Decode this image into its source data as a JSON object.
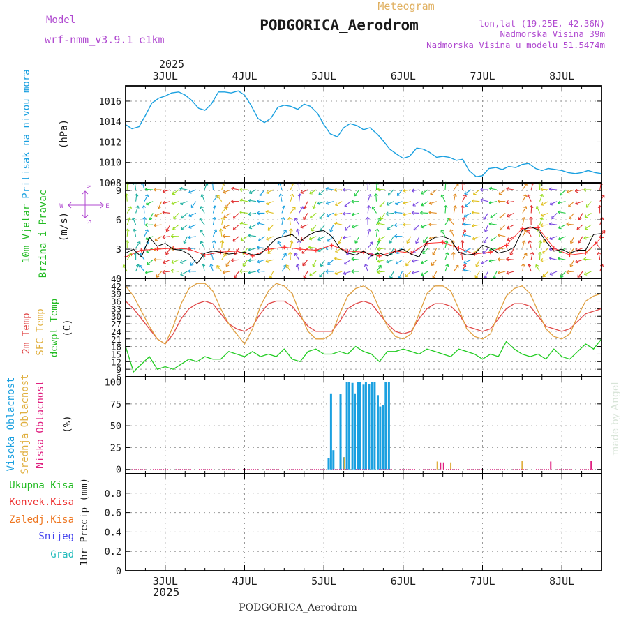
{
  "header": {
    "model_label": "Model",
    "model_name": "wrf-nmm_v3.9.1 e1km",
    "subtitle": "Meteogram",
    "station": "PODGORICA_Aerodrom",
    "coords": "lon,lat (19.25E, 42.36N)",
    "elevation": "Nadmorska Visina 39m",
    "model_elevation": "Nadmorska Visina u modelu 51.5474m"
  },
  "footer": {
    "station": "PODGORICA_Aerodrom",
    "watermark": "made by Angel"
  },
  "colors": {
    "pressure": "#1aa0e0",
    "wind_speed": "#000000",
    "wind_gust": "#ff3030",
    "temp2m": "#e04848",
    "sfc_temp": "#e0a040",
    "dewpoint": "#22cc22",
    "cloud_high": "#1aa0e0",
    "cloud_mid": "#e0b040",
    "cloud_low": "#e02080",
    "precip_total": "#22bb22",
    "precip_conv": "#ee3333",
    "precip_freez": "#ee7722",
    "precip_snow": "#4444ee",
    "precip_grad": "#22bbbb",
    "purple_label": "#b04ad0",
    "orange_label": "#e0b060"
  },
  "chart_data": [
    {
      "type": "line",
      "id": "pressure",
      "ylabel": "Pritisak na nivou mora",
      "unit": "(hPa)",
      "ylim": [
        1008,
        1017.5
      ],
      "yticks": [
        "1008",
        "1010",
        "1012",
        "1014",
        "1016"
      ],
      "x_days": [
        "3JUL",
        "4JUL",
        "5JUL",
        "6JUL",
        "7JUL",
        "8JUL"
      ],
      "year": "2025",
      "x_range_days": [
        2.5,
        8.5
      ],
      "series": [
        {
          "x": [
            2.5,
            2.58,
            2.67,
            2.75,
            2.83,
            2.92,
            3.0,
            3.08,
            3.17,
            3.25,
            3.33,
            3.42,
            3.5,
            3.58,
            3.67,
            3.75,
            3.83,
            3.92,
            4.0,
            4.08,
            4.17,
            4.25,
            4.33,
            4.42,
            4.5,
            4.58,
            4.67,
            4.75,
            4.83,
            4.92,
            5.0,
            5.08,
            5.17,
            5.25,
            5.33,
            5.42,
            5.5,
            5.58,
            5.67,
            5.75,
            5.83,
            5.92,
            6.0,
            6.08,
            6.17,
            6.25,
            6.33,
            6.42,
            6.5,
            6.58,
            6.67,
            6.75,
            6.83,
            6.92,
            7.0,
            7.08,
            7.17,
            7.25,
            7.33,
            7.42,
            7.5,
            7.58,
            7.67,
            7.75,
            7.83,
            7.92,
            8.0,
            8.08,
            8.17,
            8.25,
            8.33,
            8.42,
            8.5
          ],
          "values": [
            1013.7,
            1013.3,
            1013.5,
            1014.6,
            1015.8,
            1016.3,
            1016.5,
            1016.8,
            1016.9,
            1016.6,
            1016.1,
            1015.3,
            1015.1,
            1015.7,
            1016.9,
            1016.9,
            1016.8,
            1017.0,
            1016.6,
            1015.6,
            1014.3,
            1013.9,
            1014.3,
            1015.4,
            1015.6,
            1015.5,
            1015.2,
            1015.7,
            1015.5,
            1014.8,
            1013.7,
            1012.8,
            1012.5,
            1013.4,
            1013.8,
            1013.6,
            1013.2,
            1013.4,
            1012.8,
            1012.1,
            1011.3,
            1010.8,
            1010.4,
            1010.6,
            1011.4,
            1011.3,
            1011.0,
            1010.5,
            1010.6,
            1010.5,
            1010.2,
            1010.3,
            1009.2,
            1008.6,
            1008.7,
            1009.4,
            1009.5,
            1009.3,
            1009.6,
            1009.5,
            1009.8,
            1009.9,
            1009.4,
            1009.2,
            1009.4,
            1009.3,
            1009.2,
            1009.0,
            1008.9,
            1009.0,
            1009.2,
            1009.0,
            1008.9
          ]
        }
      ]
    },
    {
      "type": "line",
      "id": "wind",
      "ylabel": "10m Vjetar",
      "ylabel2": "Brzina i Pravac",
      "unit": "(m/s)",
      "ylim": [
        0,
        9.8
      ],
      "yticks": [
        "0",
        "3",
        "6",
        "9"
      ],
      "compass": {
        "n": "N",
        "s": "S",
        "e": "E",
        "w": "W"
      },
      "x_range_days": [
        2.5,
        8.5
      ],
      "series": [
        {
          "name": "speed",
          "x": [
            2.5,
            2.6,
            2.7,
            2.8,
            2.9,
            3.0,
            3.1,
            3.2,
            3.3,
            3.4,
            3.5,
            3.6,
            3.7,
            3.8,
            3.9,
            4.0,
            4.1,
            4.2,
            4.3,
            4.4,
            4.5,
            4.6,
            4.7,
            4.8,
            4.9,
            5.0,
            5.1,
            5.2,
            5.3,
            5.4,
            5.5,
            5.6,
            5.7,
            5.8,
            5.9,
            6.0,
            6.1,
            6.2,
            6.3,
            6.4,
            6.5,
            6.6,
            6.7,
            6.8,
            6.9,
            7.0,
            7.1,
            7.2,
            7.3,
            7.4,
            7.5,
            7.6,
            7.7,
            7.8,
            7.9,
            8.0,
            8.1,
            8.2,
            8.3,
            8.4,
            8.5
          ],
          "values": [
            2.6,
            3.0,
            2.2,
            4.2,
            3.3,
            3.6,
            3.0,
            2.9,
            2.5,
            1.5,
            2.6,
            2.8,
            2.7,
            2.5,
            2.6,
            2.7,
            2.4,
            2.5,
            3.3,
            4.1,
            4.3,
            4.5,
            3.8,
            4.4,
            4.8,
            4.9,
            4.3,
            3.1,
            2.6,
            2.4,
            2.8,
            2.3,
            2.6,
            2.3,
            2.8,
            3.0,
            2.5,
            2.2,
            3.7,
            4.2,
            4.3,
            4.0,
            2.7,
            2.4,
            2.5,
            3.4,
            3.1,
            2.6,
            2.8,
            3.2,
            4.9,
            5.3,
            5.0,
            3.8,
            2.8,
            3.0,
            2.6,
            2.9,
            2.9,
            4.5,
            4.6
          ]
        },
        {
          "name": "gust",
          "x": [
            2.5,
            2.7,
            2.9,
            3.1,
            3.3,
            3.5,
            3.7,
            3.9,
            4.1,
            4.3,
            4.5,
            4.7,
            4.9,
            5.1,
            5.3,
            5.5,
            5.7,
            5.9,
            6.1,
            6.3,
            6.5,
            6.7,
            6.9,
            7.1,
            7.3,
            7.5,
            7.7,
            7.9,
            8.1,
            8.3,
            8.5
          ],
          "values": [
            2.2,
            2.9,
            3.0,
            3.1,
            3.0,
            2.4,
            2.7,
            2.8,
            2.3,
            3.0,
            3.2,
            3.0,
            2.9,
            3.4,
            2.8,
            2.7,
            2.3,
            2.8,
            2.6,
            3.6,
            3.7,
            3.1,
            2.5,
            2.7,
            3.4,
            5.1,
            5.2,
            3.1,
            2.4,
            2.6,
            4.2
          ]
        }
      ]
    },
    {
      "type": "line",
      "id": "temperature",
      "ylabel": "2m Temp",
      "ylabel2": "SFC Temp",
      "ylabel3": "dewpt Temp",
      "unit": "(C)",
      "ylim": [
        6,
        45
      ],
      "yticks": [
        "6",
        "9",
        "12",
        "15",
        "18",
        "21",
        "24",
        "27",
        "30",
        "33",
        "36",
        "39",
        "42",
        "45"
      ],
      "x_range_days": [
        2.5,
        8.5
      ],
      "series": [
        {
          "name": "2m Temp",
          "x": [
            2.5,
            2.6,
            2.7,
            2.8,
            2.9,
            3.0,
            3.1,
            3.2,
            3.3,
            3.4,
            3.5,
            3.6,
            3.7,
            3.8,
            3.9,
            4.0,
            4.1,
            4.2,
            4.3,
            4.4,
            4.5,
            4.6,
            4.7,
            4.8,
            4.9,
            5.0,
            5.1,
            5.2,
            5.3,
            5.4,
            5.5,
            5.6,
            5.7,
            5.8,
            5.9,
            6.0,
            6.1,
            6.2,
            6.3,
            6.4,
            6.5,
            6.6,
            6.7,
            6.8,
            6.9,
            7.0,
            7.1,
            7.2,
            7.3,
            7.4,
            7.5,
            7.6,
            7.7,
            7.8,
            7.9,
            8.0,
            8.1,
            8.2,
            8.3,
            8.4,
            8.5
          ],
          "values": [
            36,
            33,
            29,
            25,
            21,
            19,
            23,
            29,
            33,
            35,
            36,
            35,
            31,
            27,
            25,
            24,
            26,
            31,
            35,
            36,
            36,
            34,
            30,
            26,
            24,
            24,
            24,
            28,
            33,
            35,
            36,
            35,
            31,
            27,
            24,
            23,
            24,
            29,
            33,
            35,
            35,
            34,
            31,
            26,
            25,
            24,
            25,
            29,
            33,
            35,
            35,
            34,
            30,
            26,
            25,
            24,
            25,
            28,
            31,
            32,
            33
          ]
        },
        {
          "name": "SFC Temp",
          "x": [
            2.5,
            2.6,
            2.7,
            2.8,
            2.9,
            3.0,
            3.1,
            3.2,
            3.3,
            3.4,
            3.5,
            3.6,
            3.7,
            3.8,
            3.9,
            4.0,
            4.1,
            4.2,
            4.3,
            4.4,
            4.5,
            4.6,
            4.7,
            4.8,
            4.9,
            5.0,
            5.1,
            5.2,
            5.3,
            5.4,
            5.5,
            5.6,
            5.7,
            5.8,
            5.9,
            6.0,
            6.1,
            6.2,
            6.3,
            6.4,
            6.5,
            6.6,
            6.7,
            6.8,
            6.9,
            7.0,
            7.1,
            7.2,
            7.3,
            7.4,
            7.5,
            7.6,
            7.7,
            7.8,
            7.9,
            8.0,
            8.1,
            8.2,
            8.3,
            8.4,
            8.5
          ],
          "values": [
            42,
            38,
            32,
            26,
            21,
            19,
            26,
            35,
            41,
            43,
            43,
            40,
            33,
            27,
            23,
            19,
            25,
            34,
            40,
            43,
            42,
            39,
            31,
            24,
            21,
            21,
            23,
            31,
            38,
            41,
            42,
            40,
            33,
            26,
            22,
            21,
            23,
            31,
            39,
            42,
            42,
            40,
            33,
            25,
            22,
            21,
            23,
            31,
            38,
            41,
            42,
            39,
            32,
            25,
            22,
            21,
            23,
            30,
            36,
            38,
            39
          ]
        },
        {
          "name": "dewpt Temp",
          "x": [
            2.5,
            2.6,
            2.7,
            2.8,
            2.9,
            3.0,
            3.1,
            3.2,
            3.3,
            3.4,
            3.5,
            3.6,
            3.7,
            3.8,
            3.9,
            4.0,
            4.1,
            4.2,
            4.3,
            4.4,
            4.5,
            4.6,
            4.7,
            4.8,
            4.9,
            5.0,
            5.1,
            5.2,
            5.3,
            5.4,
            5.5,
            5.6,
            5.7,
            5.8,
            5.9,
            6.0,
            6.1,
            6.2,
            6.3,
            6.4,
            6.5,
            6.6,
            6.7,
            6.8,
            6.9,
            7.0,
            7.1,
            7.2,
            7.3,
            7.4,
            7.5,
            7.6,
            7.7,
            7.8,
            7.9,
            8.0,
            8.1,
            8.2,
            8.3,
            8.4,
            8.5
          ],
          "values": [
            18,
            8,
            11,
            14,
            9,
            10,
            9,
            11,
            13,
            12,
            14,
            13,
            13,
            16,
            15,
            14,
            16,
            14,
            15,
            14,
            17,
            13,
            12,
            16,
            17,
            15,
            15,
            16,
            15,
            18,
            16,
            15,
            12,
            16,
            16,
            17,
            16,
            15,
            17,
            16,
            15,
            14,
            17,
            16,
            15,
            13,
            15,
            14,
            20,
            17,
            15,
            14,
            15,
            13,
            17,
            14,
            13,
            16,
            19,
            17,
            21
          ]
        }
      ]
    },
    {
      "type": "bar",
      "id": "cloud",
      "ylabel": "Visoka Oblacnost",
      "ylabel2": "Srednja Oblacnost",
      "ylabel3": "Niska Oblacnost",
      "unit": "(%)",
      "ylim": [
        -5,
        106
      ],
      "yticks": [
        "0",
        "25",
        "50",
        "75",
        "100"
      ],
      "x_range_days": [
        2.5,
        8.5
      ],
      "series": [
        {
          "name": "Visoka Oblacnost",
          "x": [
            5.06,
            5.09,
            5.12,
            5.21,
            5.25,
            5.29,
            5.32,
            5.36,
            5.39,
            5.43,
            5.46,
            5.5,
            5.53,
            5.57,
            5.61,
            5.64,
            5.68,
            5.71,
            5.75,
            5.78,
            5.82
          ],
          "values": [
            13,
            87,
            22,
            86,
            14,
            100,
            100,
            99,
            87,
            100,
            100,
            97,
            100,
            98,
            100,
            100,
            85,
            72,
            74,
            100,
            100
          ]
        },
        {
          "name": "Srednja Oblacnost",
          "x": [
            5.26,
            6.43,
            6.6,
            7.5
          ],
          "values": [
            14,
            9,
            8,
            10
          ]
        },
        {
          "name": "Niska Oblacnost",
          "x": [
            6.47,
            6.51,
            7.86,
            8.37
          ],
          "values": [
            8,
            8,
            9,
            10
          ]
        }
      ]
    },
    {
      "type": "bar",
      "id": "precip",
      "legend": [
        "Ukupna Kisa",
        "Konvek.Kisa",
        "Zaledj.Kisa",
        "Snijeg",
        "Grad"
      ],
      "unit": "1hr Precip (mm)",
      "ylim": [
        0,
        1.0
      ],
      "yticks": [
        "0",
        "0.2",
        "0.4",
        "0.6",
        "0.8"
      ],
      "x_days": [
        "3JUL",
        "4JUL",
        "5JUL",
        "6JUL",
        "7JUL",
        "8JUL"
      ],
      "year": "2025",
      "x_range_days": [
        2.5,
        8.5
      ],
      "series": []
    }
  ]
}
